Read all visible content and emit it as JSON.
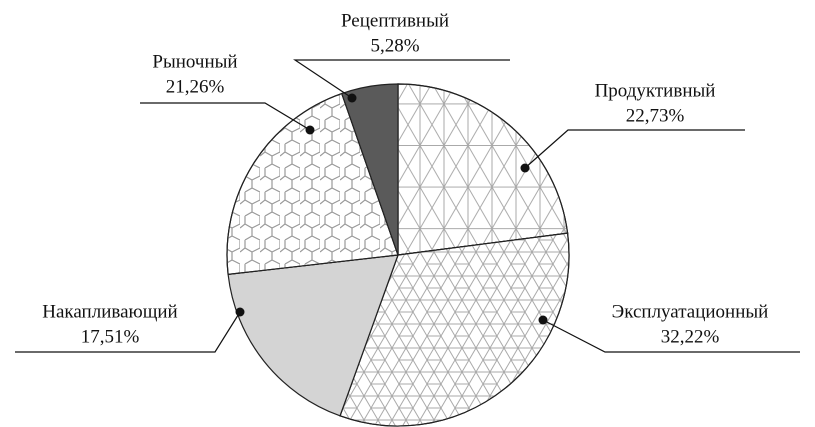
{
  "chart_data": {
    "type": "pie",
    "categories": [
      "Продуктивный",
      "Эксплуатационный",
      "Накапливающий",
      "Рыночный",
      "Рецептивный"
    ],
    "values": [
      22.73,
      32.22,
      17.51,
      21.26,
      5.28
    ],
    "value_labels": [
      "22,73%",
      "32,22%",
      "17,51%",
      "21,26%",
      "5,28%"
    ],
    "colors": [
      "#ffffff",
      "#ffffff",
      "#d4d4d4",
      "#ffffff",
      "#5a5a5a"
    ]
  }
}
